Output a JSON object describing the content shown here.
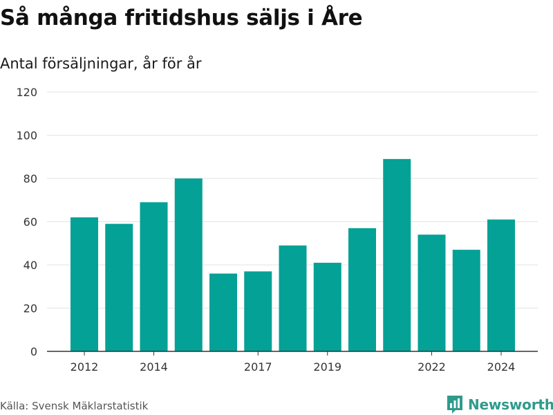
{
  "header": {
    "title": "Så många fritidshus säljs i Åre",
    "subtitle": "Antal försäljningar, år för år"
  },
  "footer": {
    "source": "Källa: Svensk Mäklarstatistik",
    "brand": "Newsworthy",
    "brand_icon": "bar-chart-logo-icon"
  },
  "colors": {
    "bar": "#04a196",
    "grid": "#e3e3e3",
    "axis": "#333333",
    "brand": "#2f9b8c"
  },
  "chart_data": {
    "type": "bar",
    "categories": [
      "2012",
      "2013",
      "2014",
      "2015",
      "2016",
      "2017",
      "2018",
      "2019",
      "2020",
      "2021",
      "2022",
      "2023",
      "2024"
    ],
    "values": [
      62,
      59,
      69,
      80,
      36,
      37,
      49,
      41,
      57,
      89,
      54,
      47,
      61
    ],
    "x_tick_labels": [
      "2012",
      "2014",
      "2017",
      "2019",
      "2022",
      "2024"
    ],
    "y_ticks": [
      0,
      20,
      40,
      60,
      80,
      100,
      120
    ],
    "ylim": [
      0,
      120
    ],
    "title": "Så många fritidshus säljs i Åre",
    "subtitle": "Antal försäljningar, år för år",
    "xlabel": "",
    "ylabel": "",
    "grid": true,
    "legend": "none"
  }
}
